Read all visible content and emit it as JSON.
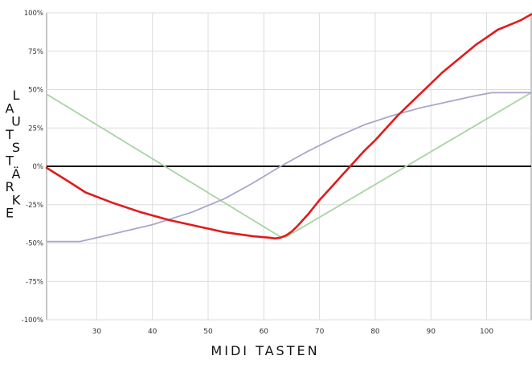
{
  "chart_data": {
    "type": "line",
    "xlabel": "MIDI TASTEN",
    "ylabel": "LAUTSTÄRKE",
    "xlim": [
      21,
      108
    ],
    "ylim": [
      -100,
      100
    ],
    "x_ticks": [
      "30",
      "40",
      "50",
      "60",
      "70",
      "80",
      "90",
      "100"
    ],
    "y_ticks": [
      "100%",
      "75%",
      "50%",
      "25%",
      "0%",
      "-25%",
      "-50%",
      "-75%",
      "-100%"
    ],
    "grid": true,
    "colors": {
      "red": "#e01b1b",
      "green": "#a6d6a0",
      "purple": "#a9a6cc",
      "zero_line": "#000000",
      "grid": "#dcdcdc"
    },
    "series": [
      {
        "color": "red",
        "x": [
          21,
          25,
          28,
          33,
          38,
          43,
          48,
          53,
          58,
          61,
          62,
          63,
          64,
          65,
          66,
          68,
          70,
          72,
          74,
          76,
          78,
          80,
          82,
          84,
          86,
          88,
          90,
          92,
          94,
          96,
          98,
          100,
          102,
          104,
          106,
          108
        ],
        "y": [
          -1,
          -10,
          -17,
          -24,
          -30,
          -35,
          -39,
          -43,
          -45.5,
          -46.5,
          -47,
          -46.5,
          -45,
          -42.5,
          -39,
          -31,
          -22,
          -14,
          -6,
          2,
          10,
          17,
          25,
          33,
          40,
          47,
          54,
          61,
          67,
          73,
          79,
          84,
          89,
          92,
          95,
          99
        ]
      },
      {
        "color": "green",
        "x": [
          21,
          63,
          64,
          108
        ],
        "y": [
          47,
          -46,
          -46,
          48
        ]
      },
      {
        "color": "purple",
        "x": [
          21,
          27,
          33,
          40,
          47,
          53,
          58,
          63,
          68,
          73,
          78,
          83,
          88,
          93,
          98,
          101,
          103,
          108
        ],
        "y": [
          -49,
          -49,
          -44,
          -38,
          -30,
          -21,
          -11,
          0,
          10,
          19,
          27,
          33,
          38,
          42,
          46,
          48,
          48,
          48
        ]
      }
    ]
  }
}
